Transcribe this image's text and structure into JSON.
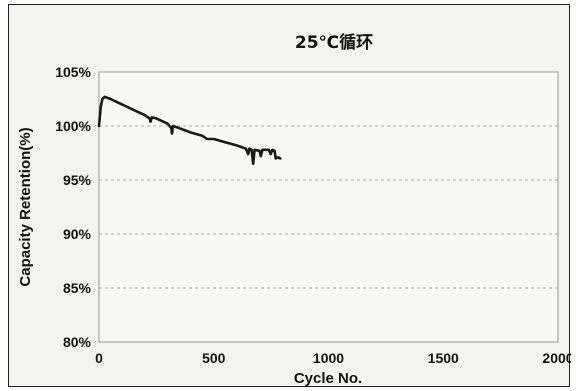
{
  "chart_data": {
    "type": "line",
    "title": "25℃循环",
    "xlabel": "Cycle No.",
    "ylabel": "Capacity Retention(%)",
    "xlim": [
      0,
      2000
    ],
    "ylim": [
      80,
      105
    ],
    "x_ticks": [
      0,
      500,
      1000,
      1500,
      2000
    ],
    "x_tick_labels": [
      "0",
      "500",
      "1000",
      "1500",
      "2000"
    ],
    "y_ticks": [
      80,
      85,
      90,
      95,
      100,
      105
    ],
    "y_tick_labels": [
      "80%",
      "85%",
      "90%",
      "95%",
      "100%",
      "105%"
    ],
    "grid": "horizontal dashed",
    "legend": "none",
    "series": [
      {
        "color": "#1a1a1a",
        "points": [
          [
            0,
            100.0
          ],
          [
            8,
            101.8
          ],
          [
            15,
            102.5
          ],
          [
            25,
            102.7
          ],
          [
            50,
            102.5
          ],
          [
            100,
            102.0
          ],
          [
            150,
            101.5
          ],
          [
            200,
            101.0
          ],
          [
            220,
            100.7
          ],
          [
            225,
            100.4
          ],
          [
            230,
            100.8
          ],
          [
            250,
            100.7
          ],
          [
            300,
            100.2
          ],
          [
            315,
            99.8
          ],
          [
            318,
            99.3
          ],
          [
            322,
            100.0
          ],
          [
            350,
            99.8
          ],
          [
            400,
            99.4
          ],
          [
            450,
            99.1
          ],
          [
            470,
            98.8
          ],
          [
            500,
            98.8
          ],
          [
            550,
            98.5
          ],
          [
            600,
            98.2
          ],
          [
            640,
            97.9
          ],
          [
            650,
            97.4
          ],
          [
            655,
            97.9
          ],
          [
            665,
            97.8
          ],
          [
            672,
            96.5
          ],
          [
            678,
            97.8
          ],
          [
            700,
            97.7
          ],
          [
            705,
            97.2
          ],
          [
            712,
            97.8
          ],
          [
            740,
            97.8
          ],
          [
            748,
            97.4
          ],
          [
            755,
            97.8
          ],
          [
            765,
            97.7
          ],
          [
            770,
            97.0
          ],
          [
            780,
            97.1
          ],
          [
            790,
            97.0
          ]
        ]
      }
    ]
  }
}
